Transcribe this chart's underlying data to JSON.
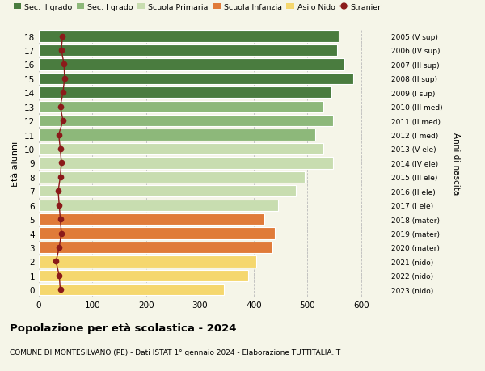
{
  "ages": [
    0,
    1,
    2,
    3,
    4,
    5,
    6,
    7,
    8,
    9,
    10,
    11,
    12,
    13,
    14,
    15,
    16,
    17,
    18
  ],
  "bar_values": [
    345,
    390,
    405,
    435,
    440,
    420,
    445,
    478,
    495,
    548,
    530,
    515,
    548,
    530,
    545,
    585,
    568,
    555,
    558
  ],
  "stranieri": [
    40,
    38,
    32,
    38,
    42,
    40,
    38,
    36,
    40,
    42,
    40,
    37,
    45,
    40,
    45,
    48,
    47,
    42,
    44
  ],
  "bar_colors": [
    "#f5d76e",
    "#f5d76e",
    "#f5d76e",
    "#e07b39",
    "#e07b39",
    "#e07b39",
    "#c8ddb0",
    "#c8ddb0",
    "#c8ddb0",
    "#c8ddb0",
    "#c8ddb0",
    "#8db87a",
    "#8db87a",
    "#8db87a",
    "#4a7c3f",
    "#4a7c3f",
    "#4a7c3f",
    "#4a7c3f",
    "#4a7c3f"
  ],
  "right_labels": [
    "2023 (nido)",
    "2022 (nido)",
    "2021 (nido)",
    "2020 (mater)",
    "2019 (mater)",
    "2018 (mater)",
    "2017 (I ele)",
    "2016 (II ele)",
    "2015 (III ele)",
    "2014 (IV ele)",
    "2013 (V ele)",
    "2012 (I med)",
    "2011 (II med)",
    "2010 (III med)",
    "2009 (I sup)",
    "2008 (II sup)",
    "2007 (III sup)",
    "2006 (IV sup)",
    "2005 (V sup)"
  ],
  "legend_labels": [
    "Sec. II grado",
    "Sec. I grado",
    "Scuola Primaria",
    "Scuola Infanzia",
    "Asilo Nido",
    "Stranieri"
  ],
  "legend_colors": [
    "#4a7c3f",
    "#8db87a",
    "#c8ddb0",
    "#e07b39",
    "#f5d76e",
    "#8b1a1a"
  ],
  "title": "Popolazione per età scolastica - 2024",
  "subtitle": "COMUNE DI MONTESILVANO (PE) - Dati ISTAT 1° gennaio 2024 - Elaborazione TUTTITALIA.IT",
  "right_axis_label": "Anni di nascita",
  "ylabel": "Età alunni",
  "xlim": [
    0,
    650
  ],
  "xticks": [
    0,
    100,
    200,
    300,
    400,
    500,
    600
  ],
  "bg_color": "#f5f5e8",
  "stranieri_color": "#8b1a1a"
}
